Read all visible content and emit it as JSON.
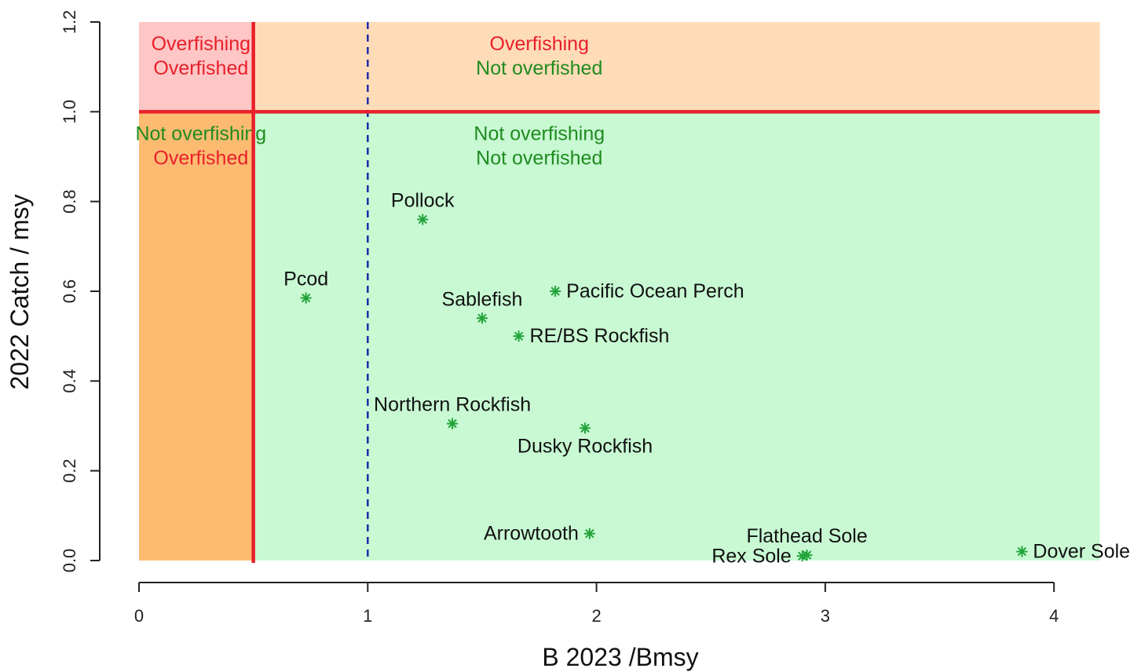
{
  "chart_data": {
    "type": "scatter",
    "title": "",
    "xlabel": "B 2023 /Bmsy",
    "ylabel": "2022 Catch / msy",
    "xlim": [
      0,
      4.2
    ],
    "ylim": [
      0,
      1.2
    ],
    "x_ticks": [
      0,
      1,
      2,
      3,
      4
    ],
    "x_tick_labels": [
      "0",
      "1",
      "2",
      "3",
      "4"
    ],
    "y_ticks": [
      0.0,
      0.2,
      0.4,
      0.6,
      0.8,
      1.0,
      1.2
    ],
    "y_tick_labels": [
      "0.0",
      "0.2",
      "0.4",
      "0.6",
      "0.8",
      "1.0",
      "1.2"
    ],
    "grid": false,
    "legend": "none",
    "reference_lines": {
      "overfished_threshold_x": 0.5,
      "overfishing_threshold_y": 1.0,
      "target_biomass_x": 1.0
    },
    "regions": [
      {
        "name": "overfishing-overfished",
        "x": [
          0,
          0.5
        ],
        "y": [
          1.0,
          1.2
        ],
        "color": "#ffc6c6",
        "labels": [
          "Overfishing",
          "Overfished"
        ],
        "label_colors": [
          "#e8202a",
          "#e8202a"
        ]
      },
      {
        "name": "overfishing-not-overfished",
        "x": [
          0.5,
          4.2
        ],
        "y": [
          1.0,
          1.2
        ],
        "color": "#ffdcb8",
        "labels": [
          "Overfishing",
          "Not overfished"
        ],
        "label_colors": [
          "#e8202a",
          "#1f8b1f"
        ]
      },
      {
        "name": "not-overfishing-overfished",
        "x": [
          0,
          0.5
        ],
        "y": [
          0,
          1.0
        ],
        "color": "#fdbb72",
        "labels": [
          "Not overfishing",
          "Overfished"
        ],
        "label_colors": [
          "#1f8b1f",
          "#e8202a"
        ]
      },
      {
        "name": "not-overfishing-not-overfished",
        "x": [
          0.5,
          4.2
        ],
        "y": [
          0,
          1.0
        ],
        "color": "#c8f9d3",
        "labels": [
          "Not overfishing",
          "Not overfished"
        ],
        "label_colors": [
          "#1f8b1f",
          "#1f8b1f"
        ]
      }
    ],
    "points": [
      {
        "label": "Pollock",
        "x": 1.24,
        "y": 0.76,
        "label_pos": "above"
      },
      {
        "label": "Pcod",
        "x": 0.73,
        "y": 0.585,
        "label_pos": "above"
      },
      {
        "label": "Pacific Ocean Perch",
        "x": 1.82,
        "y": 0.6,
        "label_pos": "right"
      },
      {
        "label": "Sablefish",
        "x": 1.5,
        "y": 0.54,
        "label_pos": "above"
      },
      {
        "label": "RE/BS Rockfish",
        "x": 1.66,
        "y": 0.5,
        "label_pos": "right"
      },
      {
        "label": "Northern Rockfish",
        "x": 1.37,
        "y": 0.305,
        "label_pos": "above"
      },
      {
        "label": "Dusky Rockfish",
        "x": 1.95,
        "y": 0.295,
        "label_pos": "below"
      },
      {
        "label": "Arrowtooth",
        "x": 1.97,
        "y": 0.06,
        "label_pos": "left"
      },
      {
        "label": "Flathead Sole",
        "x": 2.92,
        "y": 0.012,
        "label_pos": "above"
      },
      {
        "label": "Rex Sole",
        "x": 2.9,
        "y": 0.01,
        "label_pos": "left"
      },
      {
        "label": "Dover Sole",
        "x": 3.86,
        "y": 0.02,
        "label_pos": "right"
      }
    ],
    "colors": {
      "marker": "#22a33a",
      "threshold_line": "#e8202a",
      "target_line": "#1f2aa8",
      "axis": "#222222"
    }
  }
}
